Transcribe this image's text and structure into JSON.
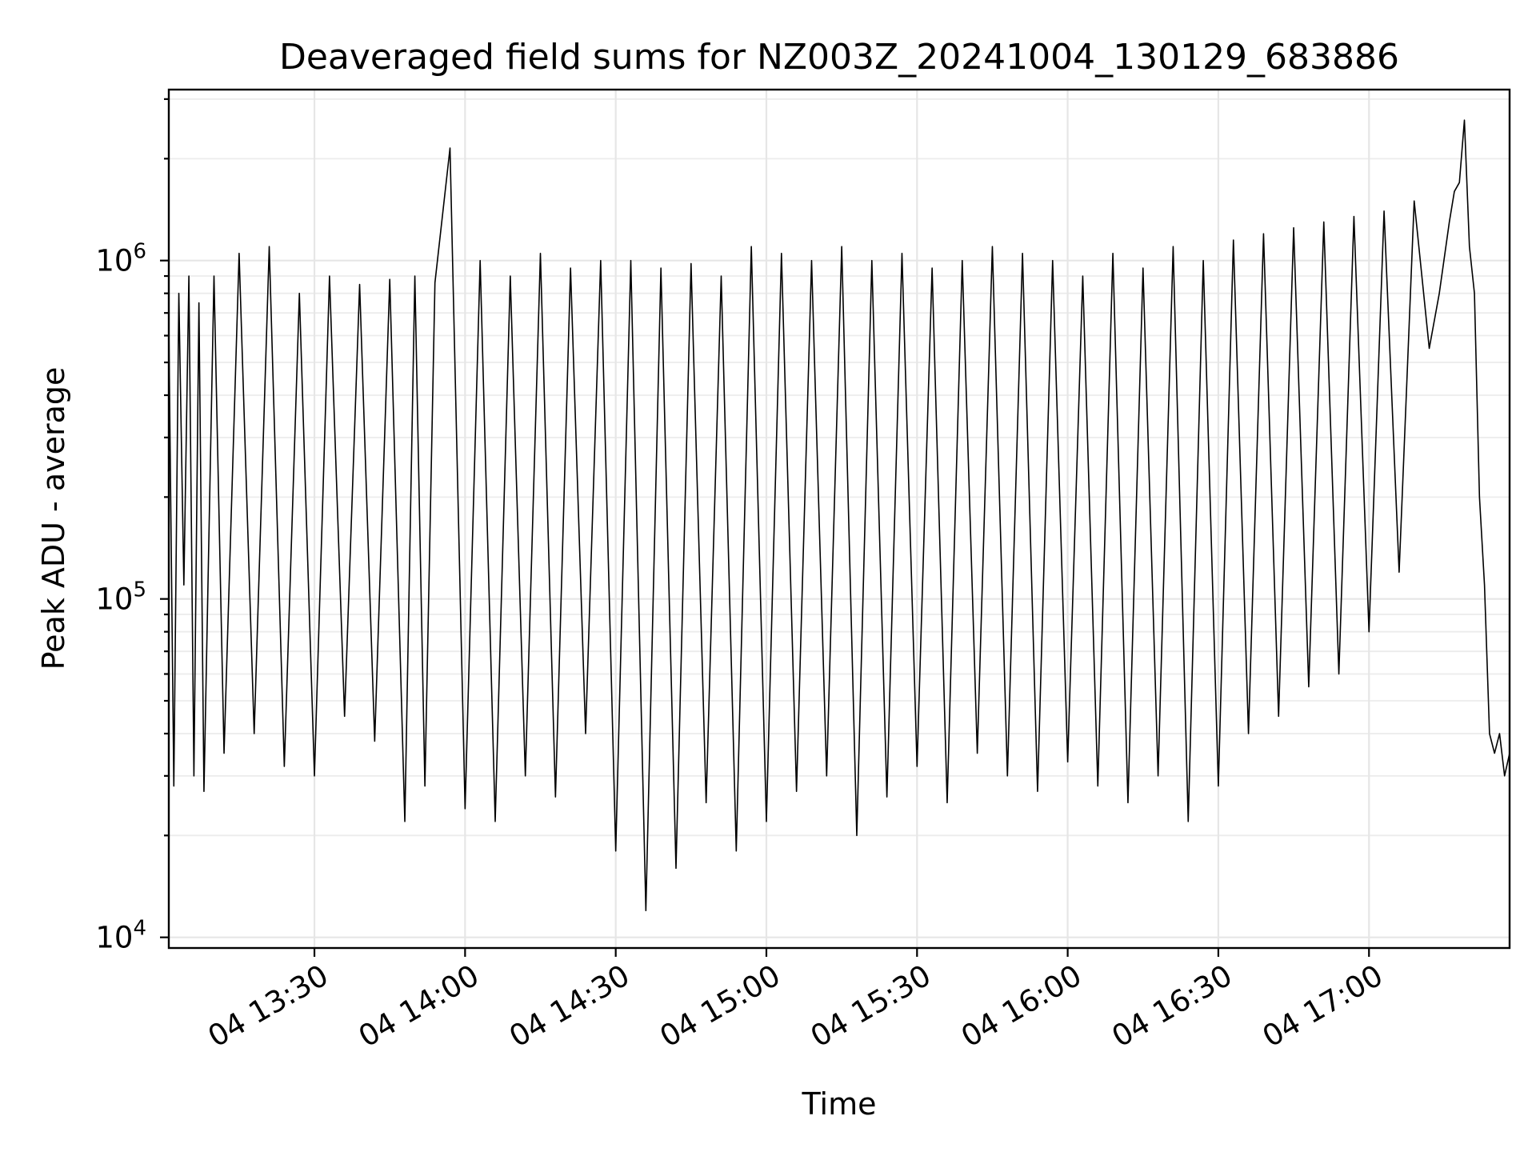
{
  "chart_data": {
    "type": "line",
    "title": "Deaveraged field sums for NZ003Z_20241004_130129_683886",
    "xlabel": "Time",
    "ylabel": "Peak ADU - average",
    "yscale": "log",
    "ylim": [
      9300,
      3200000
    ],
    "xlim": [
      "2024-10-04 13:01:00",
      "2024-10-04 17:28:00"
    ],
    "x_ticks": [
      {
        "value": "2024-10-04 13:30:00",
        "label": "04 13:30"
      },
      {
        "value": "2024-10-04 14:00:00",
        "label": "04 14:00"
      },
      {
        "value": "2024-10-04 14:30:00",
        "label": "04 14:30"
      },
      {
        "value": "2024-10-04 15:00:00",
        "label": "04 15:00"
      },
      {
        "value": "2024-10-04 15:30:00",
        "label": "04 15:30"
      },
      {
        "value": "2024-10-04 16:00:00",
        "label": "04 16:00"
      },
      {
        "value": "2024-10-04 16:30:00",
        "label": "04 16:30"
      },
      {
        "value": "2024-10-04 17:00:00",
        "label": "04 17:00"
      }
    ],
    "y_ticks": [
      {
        "value": 10000,
        "base": "10",
        "exp": "4"
      },
      {
        "value": 100000,
        "base": "10",
        "exp": "5"
      },
      {
        "value": 1000000,
        "base": "10",
        "exp": "6"
      }
    ],
    "grid": true,
    "line_color": "#000000",
    "series": [
      {
        "x": [
          "2024-10-04 13:01:00",
          "2024-10-04 13:02:00",
          "2024-10-04 13:03:00",
          "2024-10-04 13:04:00",
          "2024-10-04 13:05:00",
          "2024-10-04 13:06:00",
          "2024-10-04 13:07:00",
          "2024-10-04 13:08:00",
          "2024-10-04 13:10:00",
          "2024-10-04 13:12:00",
          "2024-10-04 13:15:00",
          "2024-10-04 13:18:00",
          "2024-10-04 13:21:00",
          "2024-10-04 13:24:00",
          "2024-10-04 13:27:00",
          "2024-10-04 13:30:00",
          "2024-10-04 13:33:00",
          "2024-10-04 13:36:00",
          "2024-10-04 13:39:00",
          "2024-10-04 13:42:00",
          "2024-10-04 13:45:00",
          "2024-10-04 13:48:00",
          "2024-10-04 13:50:00",
          "2024-10-04 13:52:00",
          "2024-10-04 13:54:00",
          "2024-10-04 13:57:00",
          "2024-10-04 14:00:00",
          "2024-10-04 14:03:00",
          "2024-10-04 14:06:00",
          "2024-10-04 14:09:00",
          "2024-10-04 14:12:00",
          "2024-10-04 14:15:00",
          "2024-10-04 14:18:00",
          "2024-10-04 14:21:00",
          "2024-10-04 14:24:00",
          "2024-10-04 14:27:00",
          "2024-10-04 14:30:00",
          "2024-10-04 14:33:00",
          "2024-10-04 14:36:00",
          "2024-10-04 14:39:00",
          "2024-10-04 14:42:00",
          "2024-10-04 14:45:00",
          "2024-10-04 14:48:00",
          "2024-10-04 14:51:00",
          "2024-10-04 14:54:00",
          "2024-10-04 14:57:00",
          "2024-10-04 15:00:00",
          "2024-10-04 15:03:00",
          "2024-10-04 15:06:00",
          "2024-10-04 15:09:00",
          "2024-10-04 15:12:00",
          "2024-10-04 15:15:00",
          "2024-10-04 15:18:00",
          "2024-10-04 15:21:00",
          "2024-10-04 15:24:00",
          "2024-10-04 15:27:00",
          "2024-10-04 15:30:00",
          "2024-10-04 15:33:00",
          "2024-10-04 15:36:00",
          "2024-10-04 15:39:00",
          "2024-10-04 15:42:00",
          "2024-10-04 15:45:00",
          "2024-10-04 15:48:00",
          "2024-10-04 15:51:00",
          "2024-10-04 15:54:00",
          "2024-10-04 15:57:00",
          "2024-10-04 16:00:00",
          "2024-10-04 16:03:00",
          "2024-10-04 16:06:00",
          "2024-10-04 16:09:00",
          "2024-10-04 16:12:00",
          "2024-10-04 16:15:00",
          "2024-10-04 16:18:00",
          "2024-10-04 16:21:00",
          "2024-10-04 16:24:00",
          "2024-10-04 16:27:00",
          "2024-10-04 16:30:00",
          "2024-10-04 16:33:00",
          "2024-10-04 16:36:00",
          "2024-10-04 16:39:00",
          "2024-10-04 16:42:00",
          "2024-10-04 16:45:00",
          "2024-10-04 16:48:00",
          "2024-10-04 16:51:00",
          "2024-10-04 16:54:00",
          "2024-10-04 16:57:00",
          "2024-10-04 17:00:00",
          "2024-10-04 17:03:00",
          "2024-10-04 17:06:00",
          "2024-10-04 17:09:00",
          "2024-10-04 17:12:00",
          "2024-10-04 17:14:00",
          "2024-10-04 17:16:00",
          "2024-10-04 17:17:00",
          "2024-10-04 17:18:00",
          "2024-10-04 17:19:00",
          "2024-10-04 17:20:00",
          "2024-10-04 17:21:00",
          "2024-10-04 17:22:00",
          "2024-10-04 17:23:00",
          "2024-10-04 17:24:00",
          "2024-10-04 17:25:00",
          "2024-10-04 17:26:00",
          "2024-10-04 17:27:00",
          "2024-10-04 17:28:00"
        ],
        "y": [
          650000,
          28000,
          800000,
          110000,
          900000,
          30000,
          750000,
          27000,
          900000,
          35000,
          1050000,
          40000,
          1100000,
          32000,
          800000,
          30000,
          900000,
          45000,
          850000,
          38000,
          880000,
          22000,
          900000,
          28000,
          860000,
          2150000,
          24000,
          1000000,
          22000,
          900000,
          30000,
          1050000,
          26000,
          950000,
          40000,
          1000000,
          18000,
          1000000,
          12000,
          950000,
          16000,
          980000,
          25000,
          900000,
          18000,
          1100000,
          22000,
          1050000,
          27000,
          1000000,
          30000,
          1100000,
          20000,
          1000000,
          26000,
          1050000,
          32000,
          950000,
          25000,
          1000000,
          35000,
          1100000,
          30000,
          1050000,
          27000,
          1000000,
          33000,
          900000,
          28000,
          1050000,
          25000,
          950000,
          30000,
          1100000,
          22000,
          1000000,
          28000,
          1150000,
          40000,
          1200000,
          45000,
          1250000,
          55000,
          1300000,
          60000,
          1350000,
          80000,
          1400000,
          120000,
          1500000,
          550000,
          800000,
          1300000,
          1600000,
          1700000,
          2600000,
          1100000,
          800000,
          200000,
          110000,
          40000,
          35000,
          40000,
          30000,
          35000
        ]
      }
    ]
  }
}
